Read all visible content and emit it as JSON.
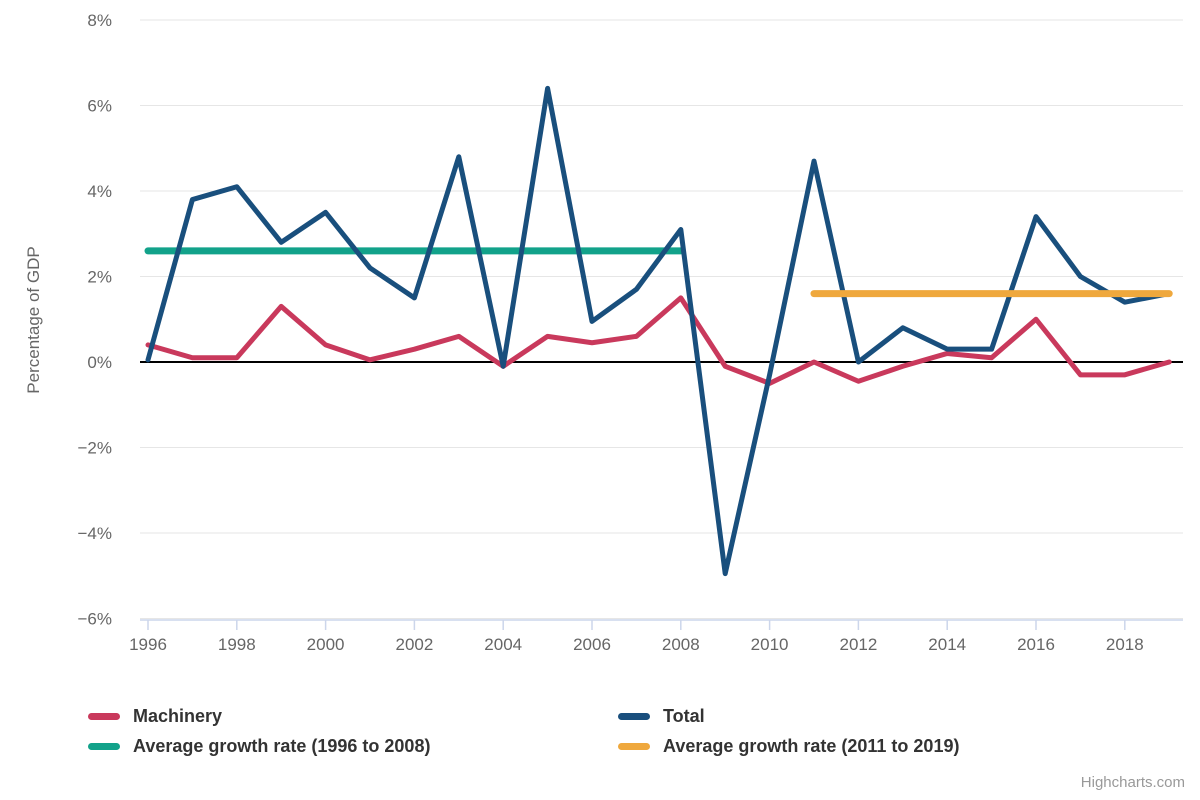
{
  "chart_data": {
    "type": "line",
    "title": "",
    "ylabel": "Percentage of GDP",
    "xlabel": "",
    "xlim": [
      1996,
      2019
    ],
    "ylim": [
      -6,
      8
    ],
    "grid": "horizontal-only",
    "legend_position": "bottom-two-columns",
    "zero_line_color": "#000000",
    "grid_color": "#e6e6e6",
    "axis_line_color": "#ccd6eb",
    "axis_text_color": "#666666",
    "x": [
      1996,
      1997,
      1998,
      1999,
      2000,
      2001,
      2002,
      2003,
      2004,
      2005,
      2006,
      2007,
      2008,
      2009,
      2010,
      2011,
      2012,
      2013,
      2014,
      2015,
      2016,
      2017,
      2018,
      2019
    ],
    "xticks": [
      {
        "v": 1996,
        "label": "1996"
      },
      {
        "v": 1998,
        "label": "1998"
      },
      {
        "v": 2000,
        "label": "2000"
      },
      {
        "v": 2002,
        "label": "2002"
      },
      {
        "v": 2004,
        "label": "2004"
      },
      {
        "v": 2006,
        "label": "2006"
      },
      {
        "v": 2008,
        "label": "2008"
      },
      {
        "v": 2010,
        "label": "2010"
      },
      {
        "v": 2012,
        "label": "2012"
      },
      {
        "v": 2014,
        "label": "2014"
      },
      {
        "v": 2016,
        "label": "2016"
      },
      {
        "v": 2018,
        "label": "2018"
      }
    ],
    "yticks": [
      {
        "v": 8,
        "label": "8%"
      },
      {
        "v": 6,
        "label": "6%"
      },
      {
        "v": 4,
        "label": "4%"
      },
      {
        "v": 2,
        "label": "2%"
      },
      {
        "v": 0,
        "label": "0%"
      },
      {
        "v": -2,
        "label": "−2%"
      },
      {
        "v": -4,
        "label": "−4%"
      },
      {
        "v": -6,
        "label": "−6%"
      }
    ],
    "draw_order": [
      2,
      0,
      1,
      3
    ],
    "series": [
      {
        "name": "Machinery",
        "color": "#c9395c",
        "lineWidth": 5,
        "x": [
          1996,
          1997,
          1998,
          1999,
          2000,
          2001,
          2002,
          2003,
          2004,
          2005,
          2006,
          2007,
          2008,
          2009,
          2010,
          2011,
          2012,
          2013,
          2014,
          2015,
          2016,
          2017,
          2018,
          2019
        ],
        "y": [
          0.4,
          0.1,
          0.1,
          1.3,
          0.4,
          0.05,
          0.3,
          0.6,
          -0.1,
          0.6,
          0.45,
          0.6,
          1.5,
          -0.1,
          -0.5,
          0.0,
          -0.45,
          -0.1,
          0.2,
          0.1,
          1.0,
          -0.3,
          -0.3,
          0.0
        ]
      },
      {
        "name": "Total",
        "color": "#194f7d",
        "lineWidth": 5,
        "x": [
          1996,
          1997,
          1998,
          1999,
          2000,
          2001,
          2002,
          2003,
          2004,
          2005,
          2006,
          2007,
          2008,
          2009,
          2010,
          2011,
          2012,
          2013,
          2014,
          2015,
          2016,
          2017,
          2018,
          2019
        ],
        "y": [
          0.05,
          3.8,
          4.1,
          2.8,
          3.5,
          2.2,
          1.5,
          4.8,
          -0.1,
          6.4,
          0.95,
          1.7,
          3.1,
          -4.95,
          -0.3,
          4.7,
          0.0,
          0.8,
          0.3,
          0.3,
          3.4,
          2.0,
          1.4,
          1.6
        ]
      },
      {
        "name": "Average growth rate (1996 to 2008)",
        "color": "#12a28a",
        "lineWidth": 7,
        "x": [
          1996,
          2008
        ],
        "y": [
          2.6,
          2.6
        ]
      },
      {
        "name": "Average growth rate (2011 to 2019)",
        "color": "#efa83d",
        "lineWidth": 7,
        "x": [
          2011,
          2019
        ],
        "y": [
          1.6,
          1.6
        ]
      }
    ]
  },
  "credits": {
    "label": "Highcharts.com"
  }
}
